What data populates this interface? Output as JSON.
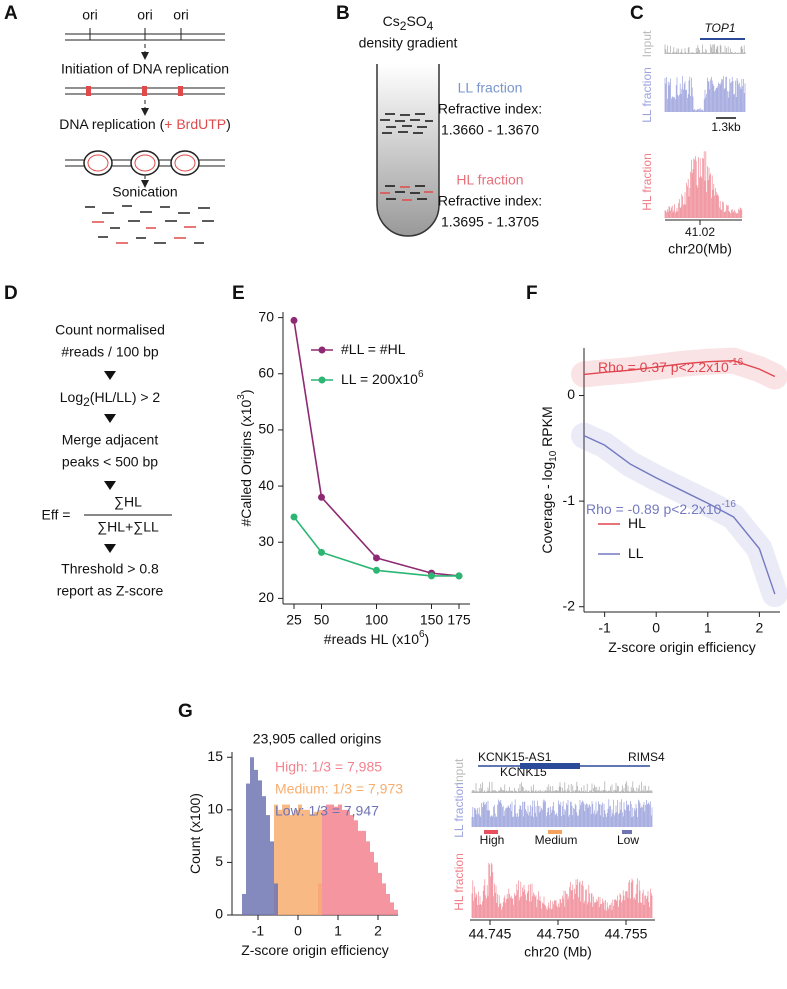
{
  "panel_labels": [
    "A",
    "B",
    "C",
    "D",
    "E",
    "F",
    "G"
  ],
  "panel_a": {
    "ori": [
      "ori",
      "ori",
      "ori"
    ],
    "step1": "Initiation of DNA replication",
    "step2_pre": "DNA replication (",
    "step2_highlight": "+ BrdUTP",
    "step2_post": ")",
    "step3": "Sonication"
  },
  "panel_b": {
    "salt": [
      "Cs",
      "2",
      "SO",
      "4"
    ],
    "gradient": "density gradient",
    "ll": {
      "name": "LL fraction",
      "label": "Refractive index:",
      "range": "1.3660 - 1.3670"
    },
    "hl": {
      "name": "HL fraction",
      "label": "Refractive index:",
      "range": "1.3695 - 1.3705"
    }
  },
  "panel_c": {
    "gene": "TOP1",
    "tracks": [
      "Input",
      "LL fraction",
      "HL fraction"
    ],
    "scale": "1.3kb",
    "tick": "41.02",
    "axis": "chr20(Mb)"
  },
  "panel_d": {
    "s1a": "Count normalised",
    "s1b": "#reads / 100 bp",
    "s2": [
      "Log",
      "2",
      "(HL/LL) > 2"
    ],
    "s3a": "Merge adjacent",
    "s3b": "peaks < 500 bp",
    "formula": {
      "lhs": "Eff =",
      "num": "∑HL",
      "den": "∑HL+∑LL"
    },
    "s4a": "Threshold > 0.8",
    "s4b": "report as Z-score"
  },
  "panel_g_tracks": {
    "genes": [
      "KCNK15-AS1",
      "KCNK15",
      "RIMS4"
    ],
    "tracks": [
      "Input",
      "LL fraction",
      "HL fraction"
    ],
    "classes": [
      "High",
      "Medium",
      "Low"
    ],
    "ticks": [
      "44.745",
      "44.750",
      "44.755"
    ],
    "axis": "chr20 (Mb)"
  },
  "chart_data": [
    {
      "type": "line",
      "markers": true,
      "legend": "upper right",
      "xlabel": {
        "text": "#reads HL (x10",
        "sup": "6",
        "end": ")"
      },
      "ylabel": {
        "text": "#Called Origins (x10",
        "sup": "3",
        "end": ")"
      },
      "x": [
        25,
        50,
        100,
        150,
        175
      ],
      "series": [
        {
          "name": "#LL = #HL",
          "color": "#8e2a73",
          "values": [
            69.5,
            38,
            27.2,
            24.5,
            24
          ]
        },
        {
          "name": "LL = 200x10",
          "name_sup": "6",
          "color": "#2bb673",
          "values": [
            34.5,
            28.2,
            25,
            24,
            24
          ]
        }
      ],
      "xlim": [
        15,
        185
      ],
      "ylim": [
        19,
        71
      ],
      "xticks": [
        25,
        50,
        100,
        150,
        175
      ],
      "yticks": [
        20,
        30,
        40,
        50,
        60,
        70
      ]
    },
    {
      "type": "line",
      "markers": false,
      "legend": "lower left",
      "xlabel": {
        "text": "Z-score origin efficiency"
      },
      "ylabel": {
        "text": "Coverage - log",
        "sub": "10",
        "end": " RPKM"
      },
      "x": [
        -1.4,
        -1,
        -0.5,
        0,
        0.5,
        1,
        1.5,
        2,
        2.3
      ],
      "series": [
        {
          "name": "HL",
          "color": "#e0454f",
          "values": [
            0.2,
            0.22,
            0.24,
            0.27,
            0.3,
            0.32,
            0.33,
            0.25,
            0.18
          ]
        },
        {
          "name": "LL",
          "color": "#7479c2",
          "values": [
            -0.38,
            -0.47,
            -0.65,
            -0.78,
            -0.9,
            -1.02,
            -1.15,
            -1.45,
            -1.88
          ]
        }
      ],
      "annotations": [
        {
          "text": "Rho = 0.37 p<2.2x10",
          "sup": "-16"
        },
        {
          "text": "Rho = -0.89 p<2.2x10",
          "sup": "-16"
        }
      ],
      "xlim": [
        -1.4,
        2.4
      ],
      "ylim": [
        -2.05,
        0.45
      ],
      "xticks": [
        -1,
        0,
        1,
        2
      ],
      "yticks": [
        -2,
        -1,
        0
      ]
    },
    {
      "type": "histogram",
      "legend": "upper right",
      "title": "23,905 called origins",
      "xlabel": {
        "text": "Z-score origin efficiency"
      },
      "ylabel": {
        "text": "Count (x100)"
      },
      "series": [
        {
          "name": "High: 1/3 = 7,985",
          "color": "#f2838f",
          "bins": [
            0.5,
            0.6,
            0.7,
            0.8,
            0.9,
            1.0,
            1.1,
            1.2,
            1.3,
            1.4,
            1.5,
            1.6,
            1.7,
            1.8,
            1.9,
            2.0,
            2.1,
            2.2,
            2.3,
            2.4,
            2.5
          ],
          "values": [
            3,
            10,
            10.5,
            10.5,
            10.3,
            10.5,
            10,
            10,
            9.5,
            9,
            8,
            8,
            7,
            6,
            5,
            4,
            3,
            2,
            1.2,
            0.5
          ]
        },
        {
          "name": "Medium: 1/3 = 7,973",
          "color": "#f7ad6e",
          "bins": [
            -0.6,
            -0.5,
            -0.4,
            -0.3,
            -0.2,
            -0.1,
            0,
            0.1,
            0.2,
            0.3,
            0.4,
            0.5,
            0.6
          ],
          "values": [
            10.5,
            10,
            10.5,
            10.5,
            9.5,
            10,
            10.5,
            10,
            10,
            9.5,
            9.8,
            10
          ]
        },
        {
          "name": "Low: 1/3 = 7,947",
          "color": "#6f74b3",
          "bins": [
            -1.4,
            -1.3,
            -1.2,
            -1.1,
            -1.0,
            -0.9,
            -0.8,
            -0.7,
            -0.6,
            -0.5
          ],
          "values": [
            2,
            12.5,
            15,
            13.8,
            12.8,
            11.3,
            9.5,
            7,
            3
          ]
        }
      ],
      "xlim": [
        -1.65,
        2.5
      ],
      "ylim": [
        0,
        15.5
      ],
      "xticks": [
        -1,
        0,
        1,
        2
      ],
      "yticks": [
        0,
        5,
        10,
        15
      ]
    }
  ]
}
